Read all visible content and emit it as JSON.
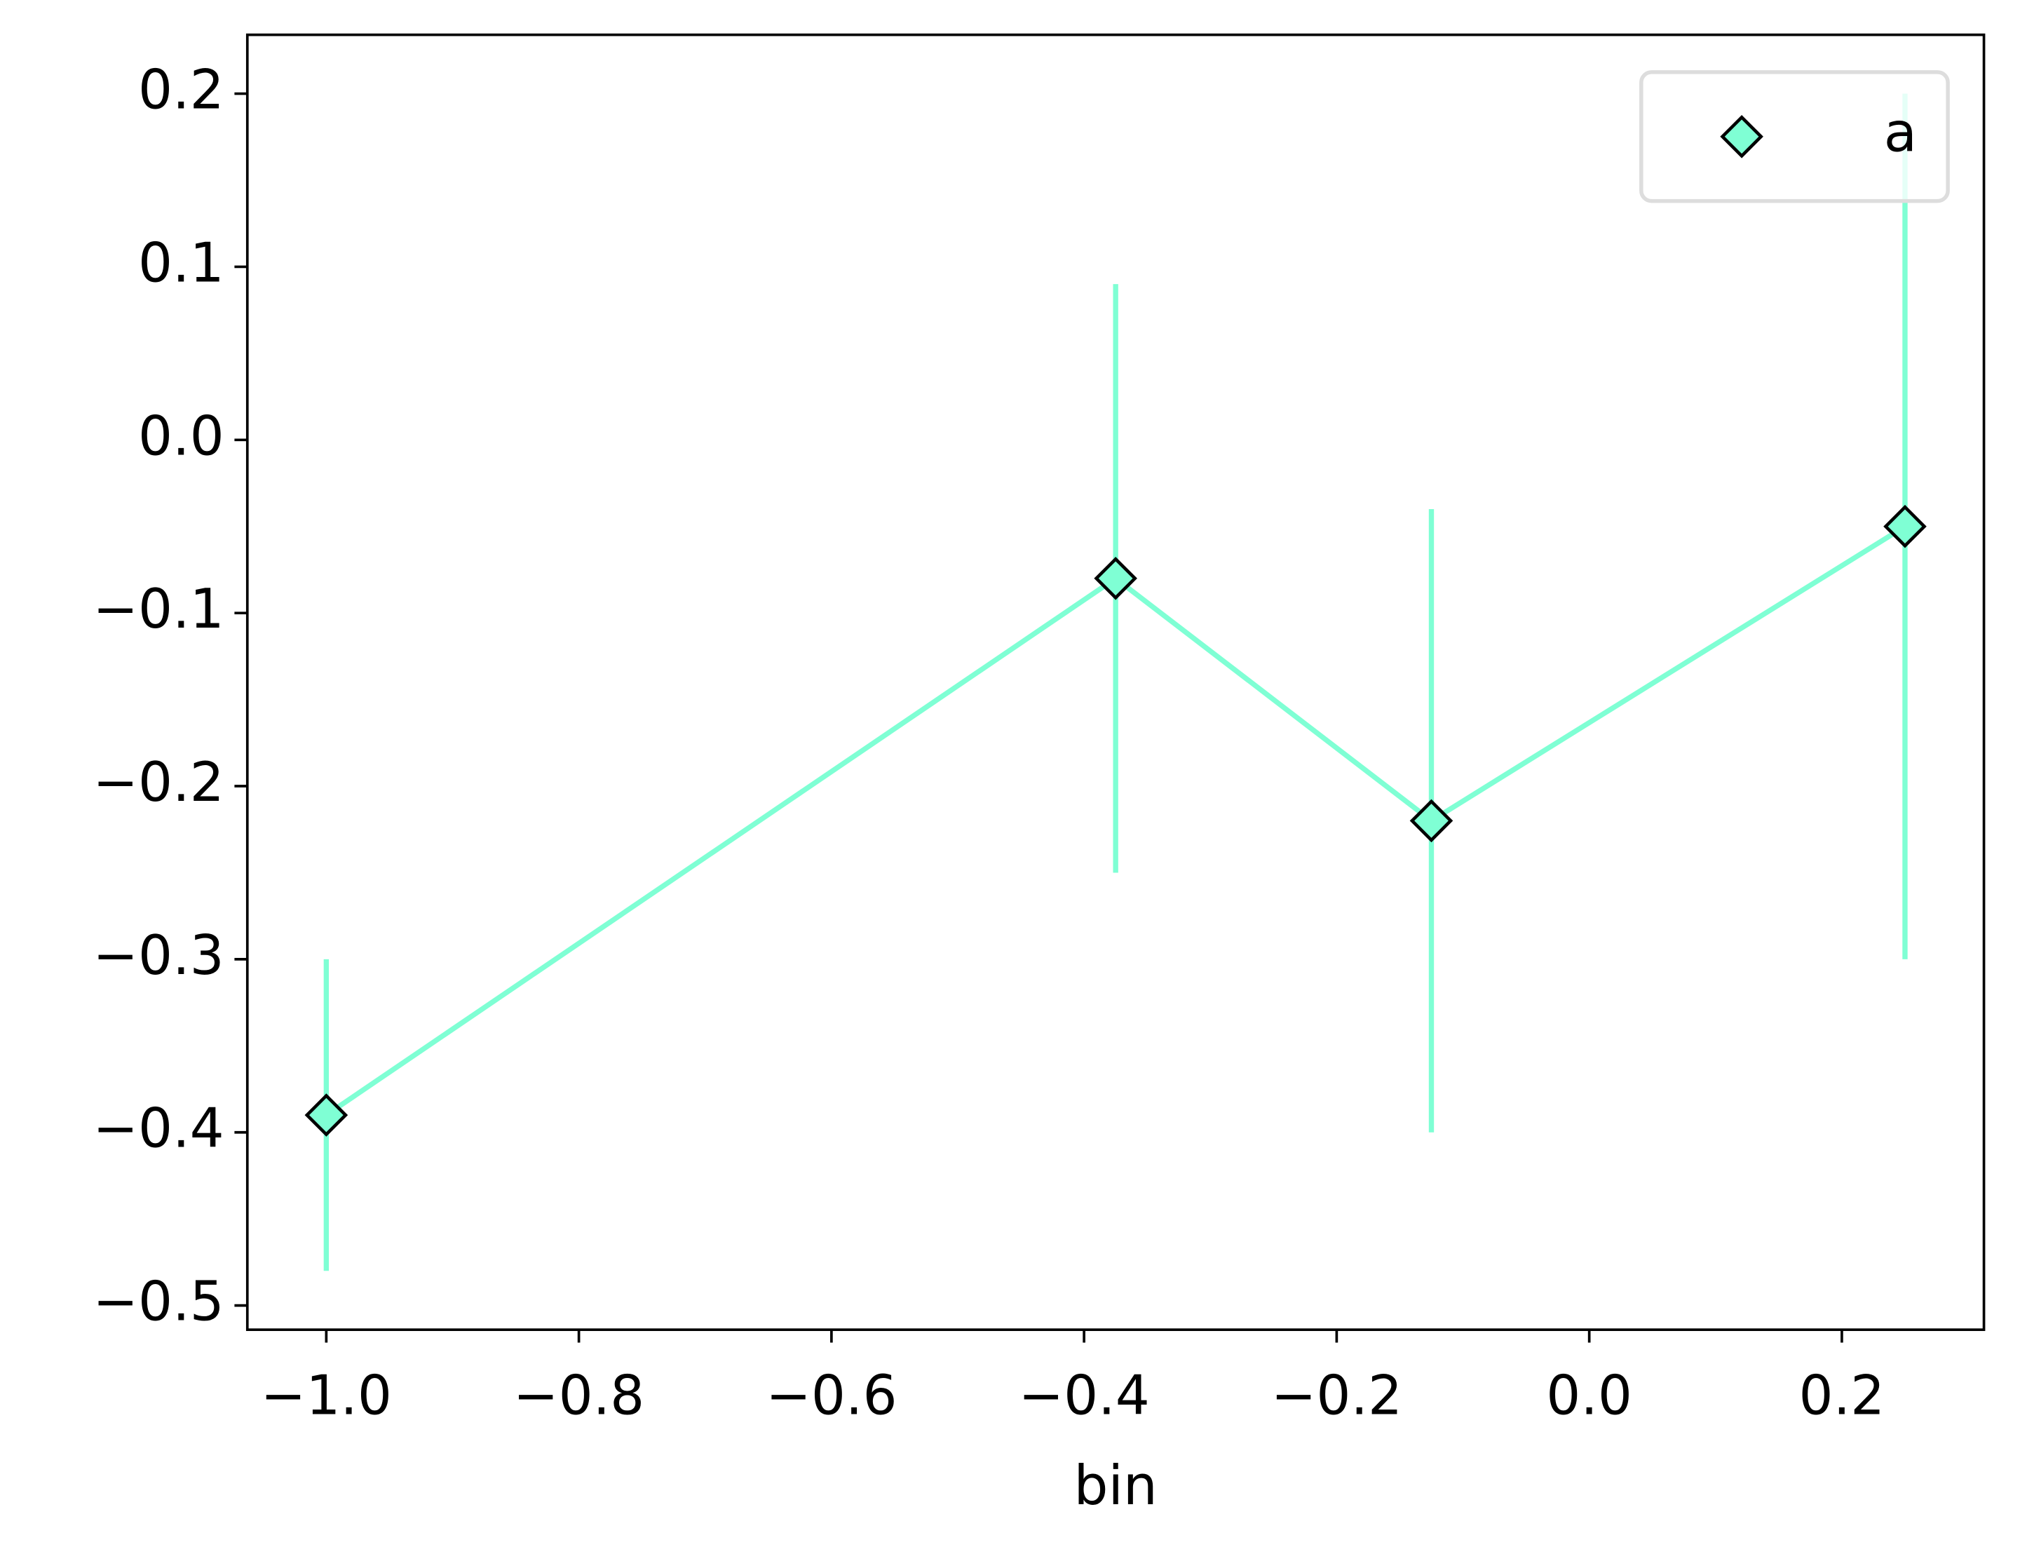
{
  "chart_data": {
    "type": "errorbar",
    "xlabel": "bin",
    "x": [
      -1.0,
      -0.375,
      -0.125,
      0.25
    ],
    "series": [
      {
        "name": "a",
        "color": "#7fffd4",
        "values": [
          -0.39,
          -0.08,
          -0.22,
          -0.05
        ],
        "errors": [
          0.09,
          0.17,
          0.18,
          0.25
        ]
      }
    ],
    "xlim": [
      -1.0625,
      0.3125
    ],
    "ylim": [
      -0.514,
      0.234
    ],
    "xticks": [
      {
        "value": -1.0,
        "label": "−1.0"
      },
      {
        "value": -0.8,
        "label": "−0.8"
      },
      {
        "value": -0.6,
        "label": "−0.6"
      },
      {
        "value": -0.4,
        "label": "−0.4"
      },
      {
        "value": -0.2,
        "label": "−0.2"
      },
      {
        "value": 0.0,
        "label": "0.0"
      },
      0.2
    ],
    "yticks": [
      {
        "value": -0.5,
        "label": "−0.5"
      },
      {
        "value": -0.4,
        "label": "−0.4"
      },
      {
        "value": -0.3,
        "label": "−0.3"
      },
      {
        "value": -0.2,
        "label": "−0.2"
      },
      {
        "value": -0.1,
        "label": "−0.1"
      },
      {
        "value": 0.0,
        "label": "0.0"
      },
      0.1,
      0.2
    ],
    "legend": "upper right",
    "grid": false
  }
}
